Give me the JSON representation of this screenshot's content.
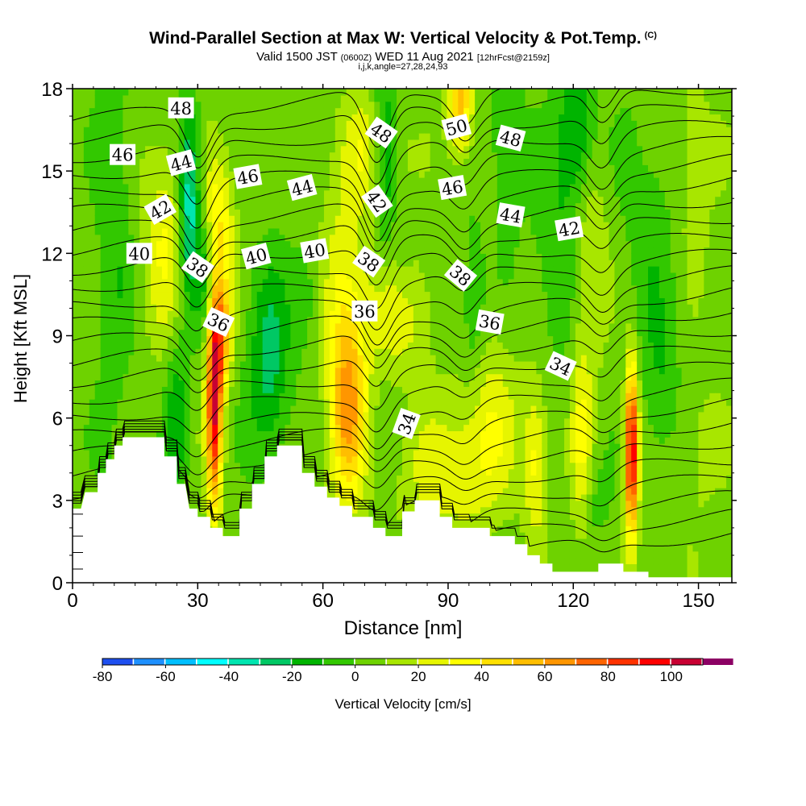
{
  "header": {
    "title": "Wind-Parallel Section at Max W: Vertical Velocity & Pot.Temp.",
    "copyright": "(C)",
    "subtitle_pre": "Valid 1500 JST",
    "subtitle_zulu": "(0600Z)",
    "subtitle_date": "WED 11 Aug 2021",
    "subtitle_fcst": "[12hrFcst@2159z]",
    "indices": "i,j,k,angle=27,28,24,93"
  },
  "chart_data": {
    "type": "heatmap",
    "xlabel": "Distance [nm]",
    "ylabel": "Height [Kft MSL]",
    "xlim": [
      0,
      158
    ],
    "ylim": [
      0,
      18
    ],
    "x_ticks": [
      0,
      30,
      60,
      90,
      120,
      150
    ],
    "y_ticks": [
      0,
      3,
      6,
      9,
      12,
      15,
      18
    ],
    "colorbar": {
      "label": "Vertical Velocity [cm/s]",
      "ticks": [
        -80,
        -60,
        -40,
        -20,
        0,
        20,
        40,
        60,
        80,
        100
      ],
      "range": [
        -80,
        110
      ],
      "step": 10,
      "colors": [
        "#0000ff",
        "#1e4fef",
        "#1e90ff",
        "#00bfff",
        "#00ffff",
        "#00e5b0",
        "#00c864",
        "#00b400",
        "#32c800",
        "#6ed200",
        "#a8e600",
        "#e6f500",
        "#ffff00",
        "#ffe000",
        "#ffbe00",
        "#ff9600",
        "#ff6400",
        "#ff3200",
        "#ff0000",
        "#c80032",
        "#8c0064",
        "#50008c"
      ]
    },
    "terrain": [
      [
        0,
        2.7
      ],
      [
        2,
        2.7
      ],
      [
        3,
        3.3
      ],
      [
        6,
        3.3
      ],
      [
        6,
        4
      ],
      [
        8,
        4
      ],
      [
        8,
        4.5
      ],
      [
        10,
        4.5
      ],
      [
        10,
        5
      ],
      [
        12,
        5
      ],
      [
        12,
        5.3
      ],
      [
        22,
        5.3
      ],
      [
        22,
        4.6
      ],
      [
        25,
        4.6
      ],
      [
        25,
        3.6
      ],
      [
        27,
        3.6
      ],
      [
        28,
        2.7
      ],
      [
        30,
        2.7
      ],
      [
        30,
        2.4
      ],
      [
        33,
        2.4
      ],
      [
        33,
        2
      ],
      [
        36,
        2
      ],
      [
        36,
        1.7
      ],
      [
        40,
        1.7
      ],
      [
        40,
        2.7
      ],
      [
        43,
        2.7
      ],
      [
        43,
        3.6
      ],
      [
        46,
        3.6
      ],
      [
        46,
        4.6
      ],
      [
        49,
        4.6
      ],
      [
        49,
        5
      ],
      [
        55,
        5
      ],
      [
        55,
        4
      ],
      [
        58,
        4
      ],
      [
        58,
        3.5
      ],
      [
        61,
        3.5
      ],
      [
        61,
        3.1
      ],
      [
        64,
        3.1
      ],
      [
        64,
        2.8
      ],
      [
        67,
        2.8
      ],
      [
        67,
        2.4
      ],
      [
        72,
        2.4
      ],
      [
        72,
        2
      ],
      [
        75,
        2
      ],
      [
        75,
        1.7
      ],
      [
        79,
        1.7
      ],
      [
        79,
        2.6
      ],
      [
        82,
        2.6
      ],
      [
        82,
        3
      ],
      [
        88,
        3
      ],
      [
        88,
        2.4
      ],
      [
        91,
        2.4
      ],
      [
        91,
        2
      ],
      [
        100,
        2
      ],
      [
        100,
        1.7
      ],
      [
        106,
        1.7
      ],
      [
        106,
        1.4
      ],
      [
        109,
        1.4
      ],
      [
        109,
        1
      ],
      [
        112,
        1
      ],
      [
        112,
        0.7
      ],
      [
        115,
        0.7
      ],
      [
        115,
        0.4
      ],
      [
        126,
        0.4
      ],
      [
        126,
        0.7
      ],
      [
        132,
        0.7
      ],
      [
        132,
        0.4
      ],
      [
        138,
        0.4
      ],
      [
        138,
        0.2
      ],
      [
        158,
        0.2
      ]
    ],
    "w_features": [
      {
        "x": 34,
        "z": 6.7,
        "sx": 1.3,
        "sz": 2.8,
        "w": 95
      },
      {
        "x": 36,
        "z": 9.2,
        "sx": 1.6,
        "sz": 1.5,
        "w": 50
      },
      {
        "x": 35,
        "z": 13.2,
        "sx": 2.6,
        "sz": 1.6,
        "w": 32
      },
      {
        "x": 22,
        "z": 12.5,
        "sx": 3.5,
        "sz": 2.5,
        "w": 25
      },
      {
        "x": 66,
        "z": 6.4,
        "sx": 3,
        "sz": 2.5,
        "w": 58
      },
      {
        "x": 64,
        "z": 11,
        "sx": 4,
        "sz": 2.5,
        "w": 20
      },
      {
        "x": 76,
        "z": 13.6,
        "sx": 3.2,
        "sz": 2.7,
        "w": 32
      },
      {
        "x": 70,
        "z": 15.8,
        "sx": 4,
        "sz": 1.5,
        "w": 20
      },
      {
        "x": 93,
        "z": 17.5,
        "sx": 2,
        "sz": 1.3,
        "w": 50
      },
      {
        "x": 78,
        "z": 9.8,
        "sx": 6,
        "sz": 1.6,
        "w": 22
      },
      {
        "x": 90,
        "z": 4,
        "sx": 8,
        "sz": 1.6,
        "w": 22
      },
      {
        "x": 100,
        "z": 6,
        "sx": 5,
        "sz": 2.2,
        "w": 20
      },
      {
        "x": 111,
        "z": 4.5,
        "sx": 2,
        "sz": 2,
        "w": 28
      },
      {
        "x": 122,
        "z": 5,
        "sx": 1.8,
        "sz": 2.6,
        "w": 26
      },
      {
        "x": 124,
        "z": 12,
        "sx": 3,
        "sz": 3,
        "w": 18
      },
      {
        "x": 134,
        "z": 4.8,
        "sx": 1.1,
        "sz": 2.2,
        "w": 100
      },
      {
        "x": 148,
        "z": 15,
        "sx": 4,
        "sz": 3,
        "w": 15
      },
      {
        "x": 150,
        "z": 5,
        "sx": 4,
        "sz": 2,
        "w": 10
      },
      {
        "x": 28,
        "z": 13.8,
        "sx": 1.8,
        "sz": 2.5,
        "w": -45
      },
      {
        "x": 32,
        "z": 11.5,
        "sx": 1.6,
        "sz": 1.5,
        "w": -22
      },
      {
        "x": 75,
        "z": 14.5,
        "sx": 2.2,
        "sz": 3,
        "w": -48
      },
      {
        "x": 79,
        "z": 12,
        "sx": 2,
        "sz": 1.8,
        "w": -20
      },
      {
        "x": 47,
        "z": 8,
        "sx": 3.5,
        "sz": 2.5,
        "w": -30
      },
      {
        "x": 57,
        "z": 10.5,
        "sx": 3,
        "sz": 1.6,
        "w": -14
      },
      {
        "x": 25,
        "z": 6,
        "sx": 1.8,
        "sz": 2.2,
        "w": -22
      },
      {
        "x": 10,
        "z": 13,
        "sx": 3,
        "sz": 6,
        "w": -14
      },
      {
        "x": 121,
        "z": 16.5,
        "sx": 3,
        "sz": 2,
        "w": -30
      },
      {
        "x": 116,
        "z": 12,
        "sx": 4,
        "sz": 3,
        "w": -14
      },
      {
        "x": 104,
        "z": 16,
        "sx": 3,
        "sz": 2.5,
        "w": -14
      },
      {
        "x": 96,
        "z": 10,
        "sx": 2,
        "sz": 2,
        "w": -18
      },
      {
        "x": 140,
        "z": 13,
        "sx": 6,
        "sz": 4,
        "w": -12
      },
      {
        "x": 141,
        "z": 7,
        "sx": 3,
        "sz": 2,
        "w": -12
      },
      {
        "x": 125,
        "z": 3,
        "sx": 3,
        "sz": 1.2,
        "w": -10
      }
    ],
    "isentrope_labels": [
      {
        "text": "48",
        "x": 26,
        "z": 17.3,
        "rot": 0
      },
      {
        "text": "46",
        "x": 12,
        "z": 15.6,
        "rot": 0
      },
      {
        "text": "44",
        "x": 26,
        "z": 15.3,
        "rot": -15
      },
      {
        "text": "46",
        "x": 42,
        "z": 14.8,
        "rot": -10
      },
      {
        "text": "44",
        "x": 55,
        "z": 14.4,
        "rot": -15
      },
      {
        "text": "48",
        "x": 74,
        "z": 16.4,
        "rot": 35
      },
      {
        "text": "50",
        "x": 92,
        "z": 16.6,
        "rot": -15
      },
      {
        "text": "48",
        "x": 105,
        "z": 16.2,
        "rot": 15
      },
      {
        "text": "46",
        "x": 91,
        "z": 14.4,
        "rot": -10
      },
      {
        "text": "42",
        "x": 21,
        "z": 13.6,
        "rot": -30
      },
      {
        "text": "42",
        "x": 73,
        "z": 13.9,
        "rot": 55
      },
      {
        "text": "44",
        "x": 105,
        "z": 13.4,
        "rot": 10
      },
      {
        "text": "42",
        "x": 119,
        "z": 12.9,
        "rot": -10
      },
      {
        "text": "40",
        "x": 16,
        "z": 12,
        "rot": 0
      },
      {
        "text": "40",
        "x": 44,
        "z": 11.9,
        "rot": -15
      },
      {
        "text": "40",
        "x": 58,
        "z": 12.1,
        "rot": -10
      },
      {
        "text": "38",
        "x": 30,
        "z": 11.5,
        "rot": 35
      },
      {
        "text": "38",
        "x": 71,
        "z": 11.7,
        "rot": 35
      },
      {
        "text": "38",
        "x": 93,
        "z": 11.2,
        "rot": 40
      },
      {
        "text": "36",
        "x": 70,
        "z": 9.9,
        "rot": 0
      },
      {
        "text": "36",
        "x": 35,
        "z": 9.5,
        "rot": 25
      },
      {
        "text": "36",
        "x": 100,
        "z": 9.5,
        "rot": 10
      },
      {
        "text": "34",
        "x": 117,
        "z": 7.9,
        "rot": 25
      },
      {
        "text": "34",
        "x": 80,
        "z": 5.8,
        "rot": -70
      }
    ]
  }
}
